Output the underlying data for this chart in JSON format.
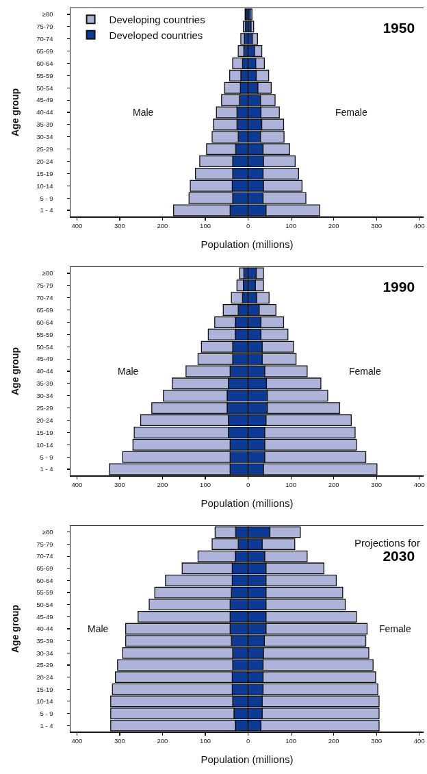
{
  "chart_data": [
    {
      "type": "bar",
      "orientation": "horizontal",
      "stacked": true,
      "title": "1950",
      "xlabel": "Population (millions)",
      "ylabel": "Age group",
      "legend": "top left",
      "categories": [
        "≥80",
        "75-79",
        "70-74",
        "65-69",
        "60-64",
        "55-59",
        "50-54",
        "45-49",
        "40-44",
        "35-39",
        "30-34",
        "25-29",
        "20-24",
        "15-19",
        "10-14",
        "5 - 9",
        "1 - 4"
      ],
      "series": [
        {
          "name": "Developed countries",
          "color": "#0c3a95",
          "values": [
            -5,
            -6,
            -9,
            -10,
            -13,
            -17,
            -18,
            -20,
            -26,
            -26,
            -23,
            -29,
            -36,
            -36,
            -37,
            -36,
            -42
          ]
        },
        {
          "name": "Developing countries",
          "color": "#aeb3d9",
          "values": [
            -2,
            -5,
            -8,
            -13,
            -23,
            -26,
            -37,
            -42,
            -48,
            -55,
            -61,
            -68,
            -77,
            -87,
            -98,
            -102,
            -132
          ]
        },
        {
          "color": "#0c3a95",
          "values": [
            5,
            7,
            10,
            15,
            18,
            19,
            23,
            29,
            30,
            32,
            29,
            35,
            36,
            35,
            36,
            35,
            42
          ]
        },
        {
          "color": "#aeb3d9",
          "values": [
            4,
            6,
            12,
            17,
            20,
            29,
            31,
            34,
            43,
            51,
            55,
            62,
            74,
            83,
            90,
            100,
            125
          ]
        }
      ],
      "xlim": [
        -415,
        410
      ],
      "xticks": [
        {
          "value": -400,
          "label": "400"
        },
        {
          "value": -300,
          "label": "300"
        },
        {
          "value": -200,
          "label": "200"
        },
        {
          "value": -100,
          "label": "100"
        },
        0,
        100,
        200,
        300,
        400
      ],
      "annotations": [
        "Male",
        "Female"
      ]
    },
    {
      "type": "bar",
      "orientation": "horizontal",
      "stacked": true,
      "title": "1990",
      "xlabel": "Population (millions)",
      "ylabel": "Age group",
      "categories": [
        "≥80",
        "75-79",
        "70-74",
        "65-69",
        "60-64",
        "55-59",
        "50-54",
        "45-49",
        "40-44",
        "35-39",
        "30-34",
        "25-29",
        "20-24",
        "15-19",
        "10-14",
        "5 - 9",
        "1 - 4"
      ],
      "series": [
        {
          "color": "#0c3a95",
          "values": [
            -10,
            -11,
            -13,
            -23,
            -30,
            -30,
            -36,
            -36,
            -42,
            -46,
            -49,
            -49,
            -46,
            -46,
            -42,
            -42,
            -42
          ]
        },
        {
          "color": "#aeb3d9",
          "values": [
            -10,
            -15,
            -26,
            -35,
            -48,
            -63,
            -73,
            -81,
            -103,
            -131,
            -149,
            -176,
            -205,
            -220,
            -227,
            -251,
            -282
          ]
        },
        {
          "color": "#0c3a95",
          "values": [
            19,
            17,
            20,
            26,
            30,
            30,
            33,
            33,
            39,
            43,
            45,
            45,
            42,
            39,
            39,
            39,
            36
          ]
        },
        {
          "color": "#aeb3d9",
          "values": [
            17,
            19,
            29,
            39,
            53,
            63,
            73,
            79,
            99,
            127,
            141,
            169,
            199,
            211,
            214,
            236,
            265
          ]
        }
      ],
      "xlim": [
        -415,
        410
      ],
      "xticks": [
        {
          "value": -400,
          "label": "400"
        },
        {
          "value": -300,
          "label": "300"
        },
        {
          "value": -200,
          "label": "200"
        },
        {
          "value": -100,
          "label": "100"
        },
        0,
        100,
        200,
        300,
        400
      ],
      "annotations": [
        "Male",
        "Female"
      ]
    },
    {
      "type": "bar",
      "orientation": "horizontal",
      "stacked": true,
      "title": "2030",
      "subtitle": "Projections for",
      "xlabel": "Population (millions)",
      "ylabel": "Age group",
      "categories": [
        "≥80",
        "75-79",
        "70-74",
        "65-69",
        "60-64",
        "55-59",
        "50-54",
        "45-49",
        "40-44",
        "35-39",
        "30-34",
        "25-29",
        "20-24",
        "15-19",
        "10-14",
        "5 - 9",
        "1 - 4"
      ],
      "series": [
        {
          "color": "#0c3a95",
          "values": [
            -29,
            -23,
            -30,
            -37,
            -37,
            -39,
            -42,
            -42,
            -42,
            -39,
            -36,
            -36,
            -37,
            -37,
            -36,
            -33,
            -30
          ]
        },
        {
          "color": "#aeb3d9",
          "values": [
            -48,
            -61,
            -87,
            -117,
            -156,
            -179,
            -189,
            -215,
            -244,
            -247,
            -257,
            -269,
            -273,
            -280,
            -285,
            -288,
            -291
          ]
        },
        {
          "color": "#0c3a95",
          "values": [
            51,
            33,
            39,
            42,
            42,
            42,
            42,
            42,
            42,
            38,
            36,
            35,
            35,
            35,
            33,
            33,
            30
          ]
        },
        {
          "color": "#aeb3d9",
          "values": [
            71,
            76,
            99,
            135,
            164,
            179,
            185,
            211,
            236,
            237,
            246,
            257,
            263,
            268,
            273,
            273,
            276
          ]
        }
      ],
      "xlim": [
        -415,
        410
      ],
      "xticks": [
        {
          "value": -400,
          "label": "400"
        },
        {
          "value": -300,
          "label": "300"
        },
        {
          "value": -200,
          "label": "200"
        },
        {
          "value": -100,
          "label": "100"
        },
        0,
        100,
        200,
        300,
        400
      ],
      "annotations": [
        "Male",
        "Female"
      ]
    }
  ]
}
